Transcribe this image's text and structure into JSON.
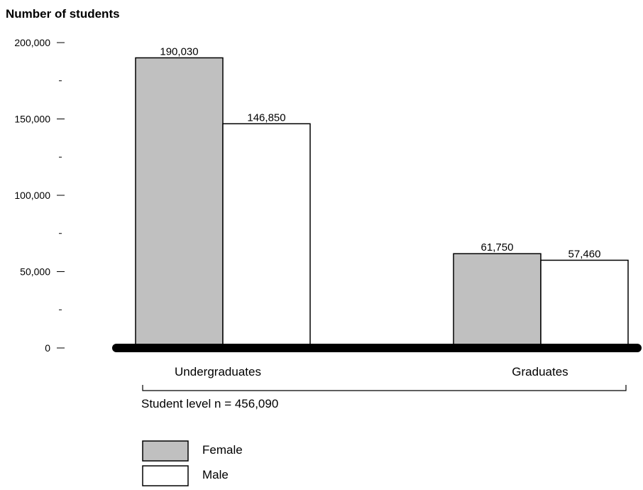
{
  "chart_data": {
    "type": "bar",
    "ylabel": "Number of students",
    "categories": [
      "Undergraduates",
      "Graduates"
    ],
    "series": [
      {
        "name": "Female",
        "values": [
          190030,
          146850
        ],
        "color": "#c0c0c0"
      },
      {
        "name": "Male",
        "values": [
          61750,
          57460
        ],
        "color": "#ffffff"
      }
    ],
    "value_labels": [
      [
        "190,030",
        "146,850"
      ],
      [
        "61,750",
        "57,460"
      ]
    ],
    "ylim": [
      0,
      200000
    ],
    "major_ticks": [
      {
        "value": 200000,
        "label": "200,000"
      },
      {
        "value": 150000,
        "label": "150,000"
      },
      {
        "value": 100000,
        "label": "100,000"
      },
      {
        "value": 50000,
        "label": "50,000"
      },
      {
        "value": 0,
        "label": "0"
      }
    ],
    "minor_ticks": [
      175000,
      125000,
      75000,
      25000
    ],
    "bracket_label": "Student level n = 456,090",
    "legend": [
      {
        "label": "Female",
        "color": "#c0c0c0"
      },
      {
        "label": "Male",
        "color": "#ffffff"
      }
    ],
    "grid": false,
    "legend_position": "bottom-left"
  }
}
